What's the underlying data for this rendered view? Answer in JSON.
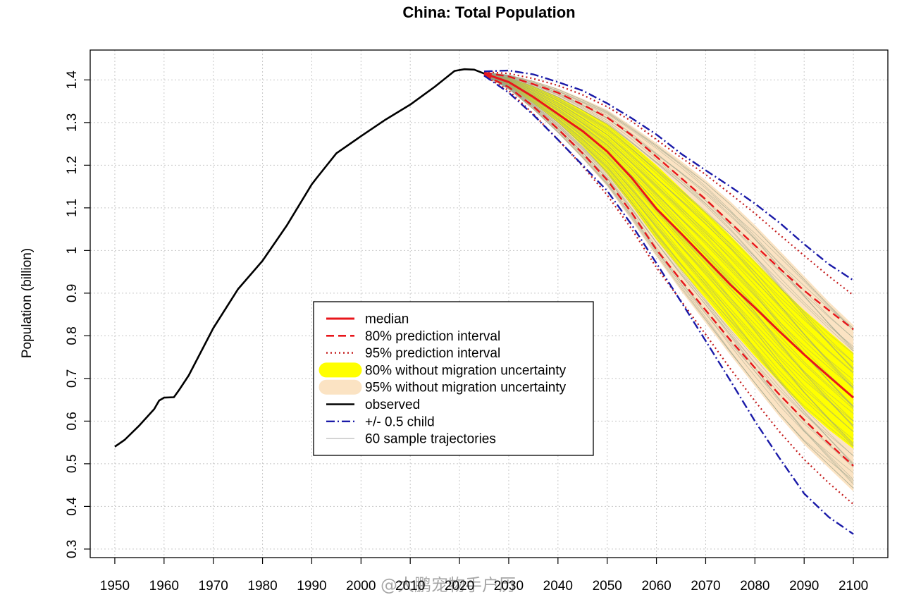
{
  "watermark": "@大鹏宠物手户历",
  "chart_data": {
    "type": "line",
    "title": "China: Total Population",
    "xlabel": "",
    "ylabel": "Population (billion)",
    "xlim": [
      1945,
      2107
    ],
    "ylim": [
      0.28,
      1.47
    ],
    "x_ticks": [
      1950,
      1960,
      1970,
      1980,
      1990,
      2000,
      2010,
      2020,
      2030,
      2040,
      2050,
      2060,
      2070,
      2080,
      2090,
      2100
    ],
    "y_ticks": [
      0.3,
      0.4,
      0.5,
      0.6,
      0.7,
      0.8,
      0.9,
      1,
      1.1,
      1.2,
      1.3,
      1.4
    ],
    "y_tick_labels": [
      "0.3",
      "0.4",
      "0.5",
      "0.6",
      "0.7",
      "0.8",
      "0.9",
      "1",
      "1.1",
      "1.2",
      "1.3",
      "1.4"
    ],
    "grid": true,
    "legend_position": "center-left",
    "colors": {
      "observed": "#000000",
      "median": "#e8161b",
      "pi80": "#e8161b",
      "pi95": "#c41a1a",
      "half_child": "#1a1aa8",
      "band80": "#ffff00",
      "band95": "#fbe3c3",
      "trajectories": "#8f9a85"
    },
    "series": [
      {
        "name": "observed",
        "x": [
          1950,
          1952,
          1955,
          1958,
          1959,
          1960,
          1962,
          1963,
          1965,
          1970,
          1975,
          1980,
          1985,
          1990,
          1991,
          1995,
          2000,
          2005,
          2010,
          2015,
          2019,
          2021,
          2023,
          2025
        ],
        "y": [
          0.54,
          0.556,
          0.59,
          0.628,
          0.648,
          0.655,
          0.656,
          0.672,
          0.707,
          0.818,
          0.909,
          0.976,
          1.06,
          1.155,
          1.17,
          1.228,
          1.268,
          1.307,
          1.342,
          1.384,
          1.421,
          1.425,
          1.424,
          1.415
        ]
      },
      {
        "name": "median",
        "x": [
          2025,
          2030,
          2035,
          2040,
          2045,
          2050,
          2055,
          2060,
          2065,
          2070,
          2075,
          2080,
          2085,
          2090,
          2095,
          2100
        ],
        "y": [
          1.415,
          1.395,
          1.36,
          1.32,
          1.28,
          1.232,
          1.17,
          1.098,
          1.04,
          0.98,
          0.92,
          0.866,
          0.81,
          0.756,
          0.705,
          0.655
        ]
      },
      {
        "name": "80% prediction interval",
        "upper": {
          "x": [
            2025,
            2030,
            2035,
            2040,
            2045,
            2050,
            2055,
            2060,
            2065,
            2070,
            2075,
            2080,
            2085,
            2090,
            2095,
            2100
          ],
          "y": [
            1.417,
            1.408,
            1.39,
            1.37,
            1.342,
            1.312,
            1.27,
            1.22,
            1.17,
            1.12,
            1.065,
            1.012,
            0.958,
            0.906,
            0.86,
            0.815
          ]
        },
        "lower": {
          "x": [
            2025,
            2030,
            2035,
            2040,
            2045,
            2050,
            2055,
            2060,
            2065,
            2070,
            2075,
            2080,
            2085,
            2090,
            2095,
            2100
          ],
          "y": [
            1.412,
            1.383,
            1.338,
            1.285,
            1.228,
            1.165,
            1.088,
            1.002,
            0.93,
            0.86,
            0.79,
            0.725,
            0.662,
            0.603,
            0.548,
            0.495
          ]
        }
      },
      {
        "name": "95% prediction interval",
        "upper": {
          "x": [
            2025,
            2030,
            2035,
            2040,
            2045,
            2050,
            2055,
            2060,
            2065,
            2070,
            2075,
            2080,
            2085,
            2090,
            2095,
            2100
          ],
          "y": [
            1.419,
            1.415,
            1.403,
            1.387,
            1.365,
            1.337,
            1.303,
            1.26,
            1.218,
            1.178,
            1.133,
            1.087,
            1.037,
            0.988,
            0.94,
            0.895
          ]
        },
        "lower": {
          "x": [
            2025,
            2030,
            2035,
            2040,
            2045,
            2050,
            2055,
            2060,
            2065,
            2070,
            2075,
            2080,
            2085,
            2090,
            2095,
            2100
          ],
          "y": [
            1.41,
            1.375,
            1.32,
            1.26,
            1.198,
            1.13,
            1.05,
            0.96,
            0.882,
            0.803,
            0.723,
            0.647,
            0.575,
            0.51,
            0.455,
            0.405
          ]
        }
      },
      {
        "name": "+/- 0.5 child",
        "upper": {
          "x": [
            2025,
            2030,
            2035,
            2040,
            2045,
            2050,
            2055,
            2060,
            2065,
            2070,
            2075,
            2080,
            2085,
            2090,
            2095,
            2100
          ],
          "y": [
            1.42,
            1.422,
            1.413,
            1.395,
            1.375,
            1.345,
            1.31,
            1.272,
            1.227,
            1.188,
            1.15,
            1.11,
            1.065,
            1.015,
            0.968,
            0.93
          ]
        },
        "lower": {
          "x": [
            2025,
            2030,
            2035,
            2040,
            2045,
            2050,
            2055,
            2060,
            2065,
            2070,
            2075,
            2080,
            2085,
            2090,
            2095,
            2100
          ],
          "y": [
            1.41,
            1.37,
            1.318,
            1.26,
            1.2,
            1.14,
            1.06,
            0.97,
            0.88,
            0.788,
            0.695,
            0.6,
            0.513,
            0.43,
            0.375,
            0.335
          ]
        }
      },
      {
        "name": "80% without migration uncertainty",
        "upper": {
          "x": [
            2025,
            2030,
            2035,
            2040,
            2045,
            2050,
            2055,
            2060,
            2065,
            2070,
            2075,
            2080,
            2085,
            2090,
            2095,
            2100
          ],
          "y": [
            1.416,
            1.405,
            1.385,
            1.36,
            1.33,
            1.297,
            1.25,
            1.2,
            1.145,
            1.09,
            1.035,
            0.975,
            0.915,
            0.86,
            0.81,
            0.76
          ]
        },
        "lower": {
          "x": [
            2025,
            2030,
            2035,
            2040,
            2045,
            2050,
            2055,
            2060,
            2065,
            2070,
            2075,
            2080,
            2085,
            2090,
            2095,
            2100
          ],
          "y": [
            1.413,
            1.386,
            1.345,
            1.3,
            1.245,
            1.18,
            1.105,
            1.025,
            0.955,
            0.887,
            0.818,
            0.752,
            0.69,
            0.63,
            0.58,
            0.535
          ]
        }
      },
      {
        "name": "95% without migration uncertainty",
        "upper": {
          "x": [
            2025,
            2030,
            2035,
            2040,
            2045,
            2050,
            2055,
            2060,
            2065,
            2070,
            2075,
            2080,
            2085,
            2090,
            2095,
            2100
          ],
          "y": [
            1.418,
            1.412,
            1.398,
            1.38,
            1.356,
            1.33,
            1.292,
            1.252,
            1.21,
            1.165,
            1.115,
            1.06,
            1.0,
            0.94,
            0.88,
            0.825
          ]
        },
        "lower": {
          "x": [
            2025,
            2030,
            2035,
            2040,
            2045,
            2050,
            2055,
            2060,
            2065,
            2070,
            2075,
            2080,
            2085,
            2090,
            2095,
            2100
          ],
          "y": [
            1.411,
            1.378,
            1.33,
            1.275,
            1.215,
            1.15,
            1.07,
            0.985,
            0.905,
            0.83,
            0.755,
            0.682,
            0.61,
            0.545,
            0.49,
            0.435
          ]
        }
      },
      {
        "name": "60 sample trajectories",
        "count": 60
      }
    ],
    "legend": [
      {
        "label": "median",
        "style": "solid-red"
      },
      {
        "label": "80% prediction interval",
        "style": "dashed-red"
      },
      {
        "label": "95% prediction interval",
        "style": "dotted-red"
      },
      {
        "label": "80% without migration uncertainty",
        "style": "band-yellow"
      },
      {
        "label": "95% without migration uncertainty",
        "style": "band-beige"
      },
      {
        "label": "observed",
        "style": "solid-black"
      },
      {
        "label": "+/- 0.5 child",
        "style": "dashdot-blue"
      },
      {
        "label": "60 sample trajectories",
        "style": "thin-gray"
      }
    ]
  }
}
